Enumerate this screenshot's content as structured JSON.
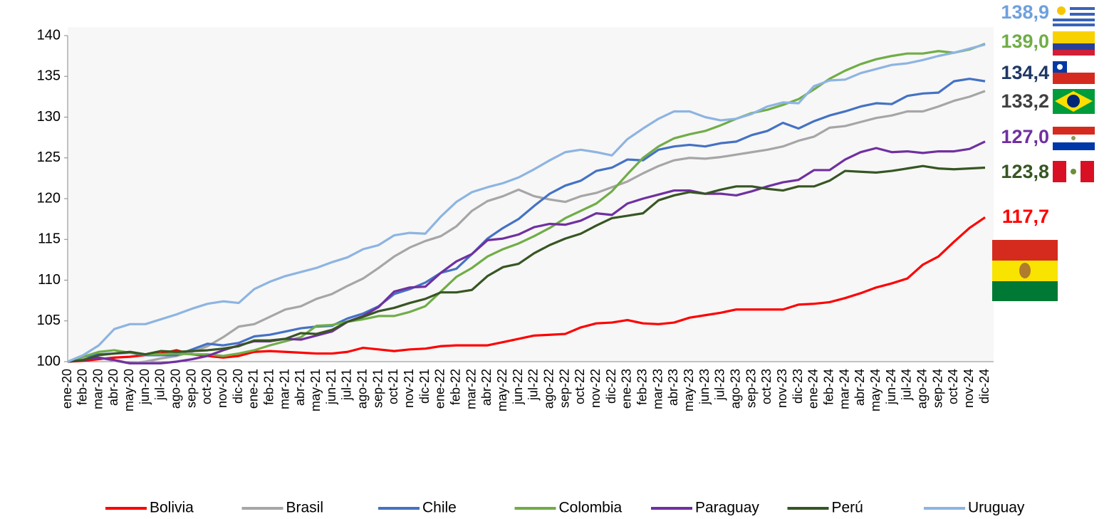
{
  "chart_data": {
    "type": "line",
    "categories": [
      "ene-20",
      "feb-20",
      "mar-20",
      "abr-20",
      "may-20",
      "jun-20",
      "jul-20",
      "ago-20",
      "sep-20",
      "oct-20",
      "nov-20",
      "dic-20",
      "ene-21",
      "feb-21",
      "mar-21",
      "abr-21",
      "may-21",
      "jun-21",
      "jul-21",
      "ago-21",
      "sep-21",
      "oct-21",
      "nov-21",
      "dic-21",
      "ene-22",
      "feb-22",
      "mar-22",
      "abr-22",
      "may-22",
      "jun-22",
      "jul-22",
      "ago-22",
      "sep-22",
      "oct-22",
      "nov-22",
      "dic-22",
      "ene-23",
      "feb-23",
      "mar-23",
      "abr-23",
      "may-23",
      "jun-23",
      "jul-23",
      "ago-23",
      "sep-23",
      "oct-23",
      "nov-23",
      "dic-23",
      "ene-24",
      "feb-24",
      "mar-24",
      "abr-24",
      "may-24",
      "jun-24",
      "jul-24",
      "ago-24",
      "sep-24",
      "oct-24",
      "nov-24",
      "dic-24"
    ],
    "series": [
      {
        "name": "Bolivia",
        "color": "#ff0000",
        "label_color": "#ff0000",
        "end_label": "117,7",
        "values": [
          100,
          100.1,
          100.3,
          100.5,
          100.6,
          100.8,
          101.0,
          101.4,
          100.9,
          100.7,
          100.5,
          100.7,
          101.2,
          101.3,
          101.2,
          101.1,
          101.0,
          101.0,
          101.2,
          101.7,
          101.5,
          101.3,
          101.5,
          101.6,
          101.9,
          102.0,
          102.0,
          102.0,
          102.4,
          102.8,
          103.2,
          103.3,
          103.4,
          104.2,
          104.7,
          104.8,
          105.1,
          104.7,
          104.6,
          104.8,
          105.4,
          105.7,
          106.0,
          106.4,
          106.4,
          106.4,
          106.4,
          107.0,
          107.1,
          107.3,
          107.8,
          108.4,
          109.1,
          109.6,
          110.2,
          111.9,
          112.9,
          114.7,
          116.4,
          117.7
        ]
      },
      {
        "name": "Brasil",
        "color": "#a6a6a6",
        "label_color": "#404040",
        "end_label": "133,2",
        "values": [
          100,
          100.3,
          100.5,
          100.1,
          99.8,
          100.0,
          100.4,
          100.7,
          101.2,
          101.9,
          103.0,
          104.3,
          104.6,
          105.5,
          106.4,
          106.8,
          107.7,
          108.3,
          109.3,
          110.2,
          111.5,
          112.9,
          114.0,
          114.8,
          115.4,
          116.6,
          118.5,
          119.7,
          120.3,
          121.1,
          120.3,
          119.9,
          119.6,
          120.3,
          120.7,
          121.4,
          122.1,
          123.1,
          124.0,
          124.7,
          125.0,
          124.9,
          125.1,
          125.4,
          125.7,
          126.0,
          126.4,
          127.1,
          127.6,
          128.7,
          128.9,
          129.4,
          129.9,
          130.2,
          130.7,
          130.7,
          131.3,
          132.0,
          132.5,
          133.2
        ]
      },
      {
        "name": "Chile",
        "color": "#4472c4",
        "label_color": "#1f3864",
        "end_label": "134,4",
        "values": [
          100,
          100.6,
          100.9,
          101.0,
          101.1,
          100.8,
          100.8,
          100.8,
          101.5,
          102.2,
          102.0,
          102.3,
          103.1,
          103.3,
          103.7,
          104.1,
          104.3,
          104.4,
          105.3,
          105.9,
          106.8,
          108.3,
          108.9,
          109.7,
          110.9,
          111.4,
          113.2,
          115.1,
          116.4,
          117.5,
          119.1,
          120.6,
          121.6,
          122.2,
          123.4,
          123.8,
          124.8,
          124.7,
          126.0,
          126.4,
          126.6,
          126.4,
          126.8,
          127.0,
          127.8,
          128.3,
          129.3,
          128.6,
          129.5,
          130.2,
          130.7,
          131.3,
          131.7,
          131.6,
          132.6,
          132.9,
          133.0,
          134.4,
          134.7,
          134.4
        ]
      },
      {
        "name": "Colombia",
        "color": "#70ad47",
        "label_color": "#70ad47",
        "end_label": "139,0",
        "values": [
          100,
          100.6,
          101.2,
          101.4,
          101.1,
          100.9,
          100.9,
          101.0,
          100.9,
          100.9,
          100.7,
          101.0,
          101.4,
          102.0,
          102.5,
          103.0,
          104.4,
          104.5,
          104.9,
          105.2,
          105.6,
          105.6,
          106.1,
          106.8,
          108.6,
          110.4,
          111.5,
          112.9,
          113.8,
          114.5,
          115.4,
          116.4,
          117.6,
          118.5,
          119.4,
          120.9,
          123.0,
          125.0,
          126.4,
          127.4,
          127.9,
          128.3,
          129.0,
          129.8,
          130.5,
          130.9,
          131.5,
          132.2,
          133.4,
          134.7,
          135.7,
          136.5,
          137.1,
          137.5,
          137.8,
          137.8,
          138.1,
          137.9,
          138.3,
          139.0
        ]
      },
      {
        "name": "Paraguay",
        "color": "#7030a0",
        "label_color": "#7030a0",
        "end_label": "127,0",
        "values": [
          100,
          100.2,
          100.5,
          100.2,
          99.8,
          99.8,
          99.8,
          100.0,
          100.3,
          100.7,
          101.4,
          102.0,
          102.5,
          102.5,
          102.8,
          102.7,
          103.2,
          103.7,
          104.9,
          105.6,
          106.7,
          108.6,
          109.1,
          109.2,
          110.9,
          112.3,
          113.2,
          114.9,
          115.1,
          115.6,
          116.5,
          116.9,
          116.8,
          117.3,
          118.2,
          118.0,
          119.4,
          120.0,
          120.5,
          121.0,
          121.0,
          120.6,
          120.6,
          120.4,
          120.9,
          121.5,
          122.0,
          122.3,
          123.5,
          123.5,
          124.8,
          125.7,
          126.2,
          125.7,
          125.8,
          125.6,
          125.8,
          125.8,
          126.1,
          127.0
        ]
      },
      {
        "name": "Perú",
        "color": "#375623",
        "label_color": "#375623",
        "end_label": "123,8",
        "values": [
          100,
          100.2,
          100.8,
          101.0,
          101.2,
          100.9,
          101.3,
          101.2,
          101.3,
          101.4,
          101.6,
          101.9,
          102.6,
          102.6,
          102.8,
          103.5,
          103.4,
          103.9,
          104.9,
          105.5,
          106.2,
          106.6,
          107.2,
          107.7,
          108.5,
          108.5,
          108.8,
          110.5,
          111.6,
          112.0,
          113.3,
          114.3,
          115.1,
          115.7,
          116.7,
          117.6,
          117.9,
          118.2,
          119.8,
          120.4,
          120.8,
          120.6,
          121.1,
          121.5,
          121.5,
          121.2,
          121.0,
          121.5,
          121.5,
          122.2,
          123.4,
          123.3,
          123.2,
          123.4,
          123.7,
          124.0,
          123.7,
          123.6,
          123.7,
          123.8
        ]
      },
      {
        "name": "Uruguay",
        "color": "#8db4e2",
        "label_color": "#6fa0dc",
        "end_label": "138,9",
        "values": [
          100,
          100.8,
          102.0,
          104.0,
          104.6,
          104.6,
          105.2,
          105.8,
          106.5,
          107.1,
          107.4,
          107.2,
          108.9,
          109.8,
          110.5,
          111.0,
          111.5,
          112.2,
          112.8,
          113.8,
          114.3,
          115.5,
          115.8,
          115.7,
          117.8,
          119.6,
          120.8,
          121.4,
          121.9,
          122.6,
          123.6,
          124.7,
          125.7,
          126.0,
          125.7,
          125.3,
          127.3,
          128.6,
          129.8,
          130.7,
          130.7,
          130.0,
          129.6,
          129.8,
          130.4,
          131.3,
          131.8,
          131.7,
          133.8,
          134.5,
          134.6,
          135.4,
          135.9,
          136.4,
          136.6,
          137.0,
          137.5,
          137.9,
          138.4,
          138.9
        ]
      }
    ],
    "ylim": [
      100,
      140
    ],
    "yticks": [
      100,
      105,
      110,
      115,
      120,
      125,
      130,
      135,
      140
    ],
    "grid": false,
    "legend": "bottom"
  }
}
